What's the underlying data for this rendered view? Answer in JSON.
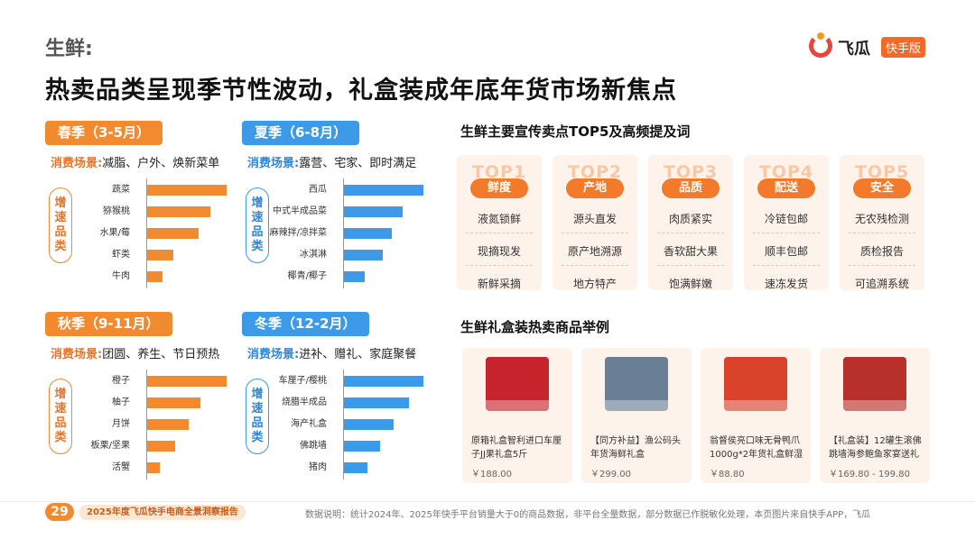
{
  "header": {
    "section": "生鲜:",
    "title": "热卖品类呈现季节性波动，礼盒装成年底年货市场新焦点",
    "logo_name": "飞瓜",
    "logo_tag": "快手版"
  },
  "scene_key": "消费场景:",
  "growth_tag": [
    "增",
    "速",
    "品",
    "类"
  ],
  "seasons": [
    {
      "name": "春季（3-5月）",
      "scenes": "减脂、户外、焕新菜单",
      "items": [
        {
          "label": "蔬菜",
          "value": 100
        },
        {
          "label": "猕猴桃",
          "value": 80
        },
        {
          "label": "水果/莓",
          "value": 65
        },
        {
          "label": "虾类",
          "value": 33
        },
        {
          "label": "牛肉",
          "value": 19
        }
      ]
    },
    {
      "name": "夏季（6-8月）",
      "scenes": "露营、宅家、即时满足",
      "items": [
        {
          "label": "西瓜",
          "value": 100
        },
        {
          "label": "中式半成品菜",
          "value": 74
        },
        {
          "label": "麻辣拌/凉拌菜",
          "value": 60
        },
        {
          "label": "冰淇淋",
          "value": 49
        },
        {
          "label": "椰青/椰子",
          "value": 26
        }
      ]
    },
    {
      "name": "秋季（9-11月）",
      "scenes": "团圆、养生、节日预热",
      "items": [
        {
          "label": "橙子",
          "value": 100
        },
        {
          "label": "柚子",
          "value": 67
        },
        {
          "label": "月饼",
          "value": 52
        },
        {
          "label": "板栗/坚果",
          "value": 35
        },
        {
          "label": "活蟹",
          "value": 16
        }
      ]
    },
    {
      "name": "冬季（12-2月）",
      "scenes": "进补、赠礼、家庭聚餐",
      "items": [
        {
          "label": "车厘子/樱桃",
          "value": 100
        },
        {
          "label": "烧腊半成品",
          "value": 82
        },
        {
          "label": "海产礼盒",
          "value": 63
        },
        {
          "label": "佛跳墙",
          "value": 46
        },
        {
          "label": "猪肉",
          "value": 29
        }
      ]
    }
  ],
  "selling_points": {
    "title": "生鲜主要宣传卖点TOP5及高频提及词",
    "cards": [
      {
        "top": "TOP1",
        "cat": "鲜度",
        "terms": [
          "液氮锁鲜",
          "现摘现发",
          "新鲜采摘"
        ]
      },
      {
        "top": "TOP2",
        "cat": "产地",
        "terms": [
          "源头直发",
          "原产地溯源",
          "地方特产"
        ]
      },
      {
        "top": "TOP3",
        "cat": "品质",
        "terms": [
          "肉质紧实",
          "香软甜大果",
          "饱满鲜嫩"
        ]
      },
      {
        "top": "TOP4",
        "cat": "配送",
        "terms": [
          "冷链包邮",
          "顺丰包邮",
          "速冻发货"
        ]
      },
      {
        "top": "TOP5",
        "cat": "安全",
        "terms": [
          "无农残检测",
          "质检报告",
          "可追溯系统"
        ]
      }
    ]
  },
  "gift_boxes": {
    "title": "生鲜礼盒装热卖商品举例",
    "items": [
      {
        "name": "原箱礼盒智利进口车厘子JJ果礼盒5斤",
        "price": "￥188.00",
        "color": "#c8242e"
      },
      {
        "name": "【同方补益】渔公码头 年货海鲜礼盒",
        "price": "￥299.00",
        "color": "#6a7f96"
      },
      {
        "name": "翁督侯亮口味无骨鸭爪1000g*2年货礼盒鲜湿",
        "price": "￥88.80",
        "color": "#d8432a"
      },
      {
        "name": "【礼盒装】12罐生滚佛跳墙海参鲍鱼家宴送礼",
        "price": "￥169.80 - 199.80",
        "color": "#b8302a"
      }
    ]
  },
  "footer": {
    "page": "29",
    "report": "2025年度飞瓜快手电商全景洞察报告",
    "source": "数据说明：统计2024年、2025年快手平台销量大于0的商品数据，非平台全量数据，部分数据已作脱敏化处理，本页图片来自快手APP，飞瓜"
  },
  "colors": {
    "warm": "#f28a30",
    "cool": "#3d9ae8",
    "accent": "#f27a2a"
  }
}
